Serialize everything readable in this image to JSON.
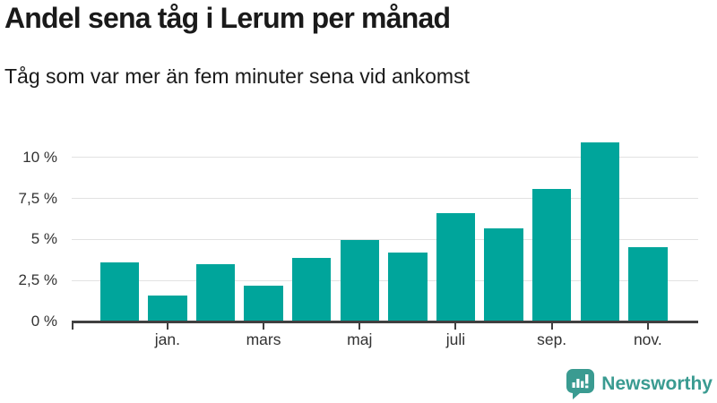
{
  "header": {
    "title": "Andel sena tåg i Lerum per månad",
    "subtitle": "Tåg som var mer än fem minuter sena vid ankomst"
  },
  "chart_data": {
    "type": "bar",
    "title": "Andel sena tåg i Lerum per månad",
    "subtitle": "Tåg som var mer än fem minuter sena vid ankomst",
    "values": [
      3.6,
      1.6,
      3.5,
      2.2,
      3.9,
      4.95,
      4.2,
      6.6,
      5.65,
      8.1,
      10.9,
      4.55
    ],
    "x_tick_labels": [
      "",
      "jan.",
      "",
      "mars",
      "",
      "maj",
      "",
      "juli",
      "",
      "sep.",
      "",
      "nov."
    ],
    "y_ticks": [
      {
        "value": 0,
        "label": "0 %"
      },
      {
        "value": 2.5,
        "label": "2,5 %"
      },
      {
        "value": 5,
        "label": "5 %"
      },
      {
        "value": 7.5,
        "label": "7,5 %"
      },
      {
        "value": 10,
        "label": "10 %"
      }
    ],
    "ylim": [
      0,
      11.4
    ],
    "unit": "%",
    "grid": true,
    "legend": "none",
    "bar_color": "#00a59b"
  },
  "branding": {
    "logo_text": "Newsworthy",
    "logo_color": "#3a9b91",
    "logo_icon": "newsworthy-bar-chart-bubble-icon"
  },
  "colors": {
    "bar": "#00a59b",
    "axis": "#404040",
    "gridline": "#e2e2e2",
    "tick_text": "#333333",
    "heading_text": "#1a1a1a",
    "logo": "#3a9b91"
  }
}
